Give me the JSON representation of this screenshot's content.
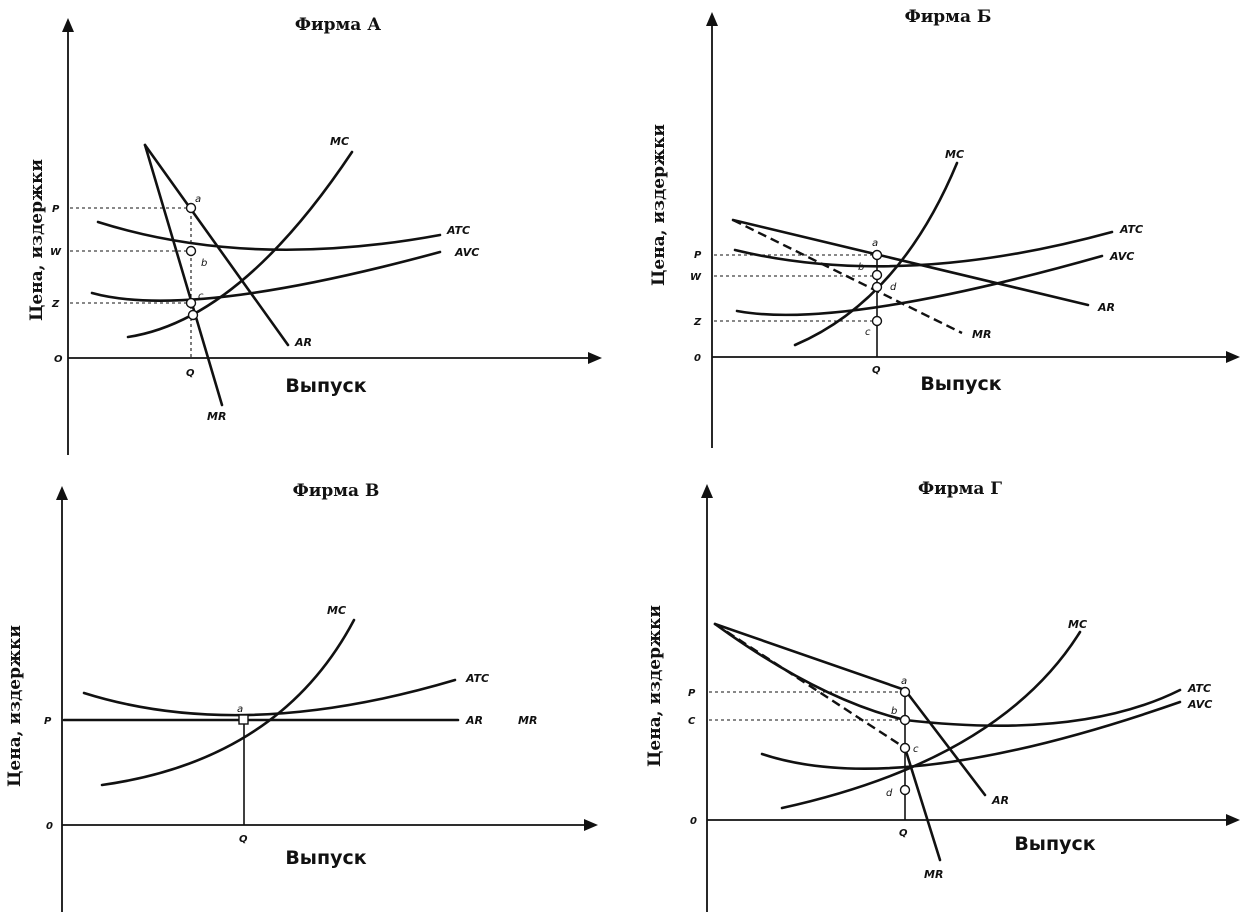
{
  "panels": {
    "a": {
      "title": "Фирма А",
      "ylabel": "Цена, издержки",
      "xlabel": "Выпуск",
      "ticks": {
        "p": "P",
        "w": "W",
        "z": "Z",
        "o": "O",
        "q": "Q"
      },
      "curves": {
        "mc": "MC",
        "atc": "ATC",
        "avc": "AVC",
        "ar": "AR",
        "mr": "MR"
      },
      "points": {
        "a": "a",
        "b": "b",
        "c": "c"
      }
    },
    "b": {
      "title": "Фирма Б",
      "ylabel": "Цена, издержки",
      "xlabel": "Выпуск",
      "ticks": {
        "p": "P",
        "w": "W",
        "z": "Z",
        "o": "0",
        "q": "Q"
      },
      "curves": {
        "mc": "MC",
        "atc": "ATC",
        "avc": "AVC",
        "ar": "AR",
        "mr": "MR"
      },
      "points": {
        "a": "a",
        "b": "b",
        "d": "d",
        "c": "c"
      }
    },
    "v": {
      "title": "Фирма В",
      "ylabel": "Цена, издержки",
      "xlabel": "Выпуск",
      "ticks": {
        "p": "P",
        "o": "0",
        "q": "Q"
      },
      "curves": {
        "mc": "MC",
        "atc": "ATC",
        "ar": "AR",
        "mr": "MR"
      },
      "points": {
        "a": "a"
      }
    },
    "g": {
      "title": "Фирма Г",
      "ylabel": "Цена, издержки",
      "xlabel": "Выпуск",
      "ticks": {
        "p": "P",
        "c": "C",
        "o": "0",
        "q": "Q"
      },
      "curves": {
        "mc": "MC",
        "atc": "ATC",
        "avc": "AVC",
        "ar": "AR",
        "mr": "MR"
      },
      "points": {
        "a": "a",
        "b": "b",
        "c": "c",
        "d": "d"
      }
    }
  }
}
